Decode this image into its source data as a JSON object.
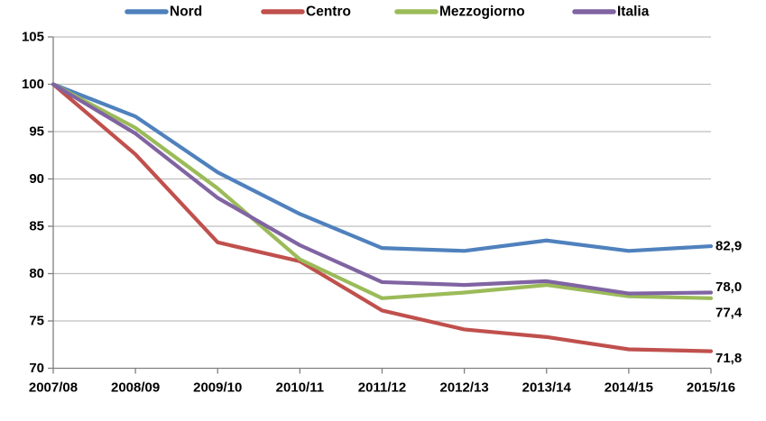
{
  "chart_data": {
    "type": "line",
    "title": "",
    "xlabel": "",
    "ylabel": "",
    "categories": [
      "2007/08",
      "2008/09",
      "2009/10",
      "2010/11",
      "2011/12",
      "2012/13",
      "2013/14",
      "2014/15",
      "2015/16"
    ],
    "series": [
      {
        "name": "Nord",
        "color": "#4F81BD",
        "values": [
          100,
          96.6,
          90.7,
          86.3,
          82.7,
          82.4,
          83.5,
          82.4,
          82.9
        ],
        "end_label": "82,9"
      },
      {
        "name": "Centro",
        "color": "#C0504D",
        "values": [
          100,
          92.6,
          83.3,
          81.3,
          76.1,
          74.1,
          73.3,
          72.0,
          71.8
        ],
        "end_label": "71,8"
      },
      {
        "name": "Mezzogiorno",
        "color": "#9BBB59",
        "values": [
          100,
          95.4,
          89.0,
          81.5,
          77.4,
          78.0,
          78.8,
          77.6,
          77.4
        ],
        "end_label": "77,4"
      },
      {
        "name": "Italia",
        "color": "#8064A2",
        "values": [
          100,
          94.8,
          88.0,
          83.0,
          79.1,
          78.8,
          79.2,
          77.9,
          78.0
        ],
        "end_label": "78,0"
      }
    ],
    "ylim": [
      70,
      105
    ],
    "ytick_step": 5,
    "yticks": [
      "70",
      "75",
      "80",
      "85",
      "90",
      "95",
      "100",
      "105"
    ],
    "grid": true,
    "legend_position": "top",
    "legend_order": [
      "Nord",
      "Centro",
      "Mezzogiorno",
      "Italia"
    ],
    "colors": {
      "grid": "#BFBFBF",
      "axis": "#808080",
      "text": "#000000",
      "background": "#FFFFFF"
    }
  }
}
